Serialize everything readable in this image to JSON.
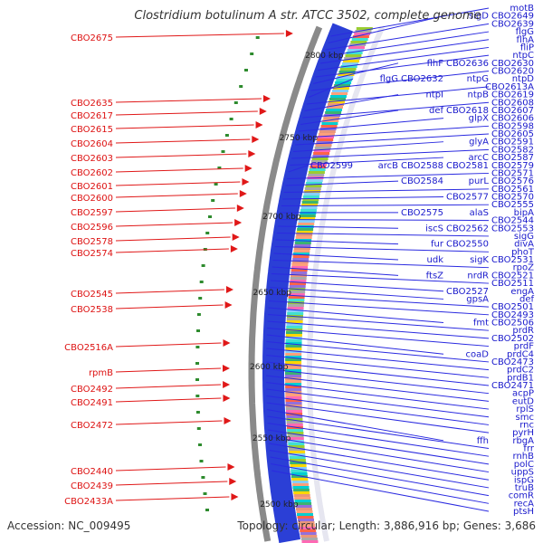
{
  "title": "Clostridium botulinum A str. ATCC 3502, complete genome",
  "accession": "Accession: NC_009495",
  "summary": "Topology: circular; Length: 3,886,916 bp; Genes: 3,686",
  "colors": {
    "right_label": "#1a1acc",
    "left_label": "#dd1111",
    "right_line": "#2a2ae0",
    "left_line": "#e01818"
  },
  "kbp_labels": [
    "2800 kbp",
    "2750 kbp",
    "2700 kbp",
    "2650 kbp",
    "2600 kbp",
    "2550 kbp",
    "2500 kbp"
  ],
  "right_labels": [
    [
      "motB"
    ],
    [
      "sigD",
      "CBO2649"
    ],
    [
      "CBO2639"
    ],
    [
      "flgG"
    ],
    [
      "flhA"
    ],
    [
      "fliP"
    ],
    [
      "ntpC"
    ],
    [
      "flhF",
      "CBO2636",
      "CBO2630"
    ],
    [
      "CBO2620"
    ],
    [
      "flgG",
      "CBO2632",
      "ntpG",
      "ntpD"
    ],
    [
      "CBO2613A"
    ],
    [
      "ntpI",
      "ntpB",
      "CBO2619"
    ],
    [
      "CBO2608"
    ],
    [
      "def",
      "CBO2618",
      "CBO2607"
    ],
    [
      "glpX",
      "CBO2606"
    ],
    [
      "CBO2598"
    ],
    [
      "CBO2605"
    ],
    [
      "glyA",
      "CBO2591"
    ],
    [
      "CBO2582"
    ],
    [
      "arcC",
      "CBO2587"
    ],
    [
      "CBO2599",
      "arcB",
      "CBO2588",
      "CBO2581",
      "CBO2579"
    ],
    [
      "CBO2571"
    ],
    [
      "CBO2584",
      "purL",
      "CBO2576"
    ],
    [
      "CBO2561"
    ],
    [
      "CBO2577",
      "CBO2570"
    ],
    [
      "CBO2555"
    ],
    [
      "CBO2575",
      "alaS",
      "bipA"
    ],
    [
      "CBO2544"
    ],
    [
      "iscS",
      "CBO2562",
      "CBO2553"
    ],
    [
      "sigG"
    ],
    [
      "fur",
      "CBO2550",
      "divA"
    ],
    [
      "phoT"
    ],
    [
      "udk",
      "sigK",
      "CBO2531"
    ],
    [
      "rpoZ"
    ],
    [
      "ftsZ",
      "nrdR",
      "CBO2521"
    ],
    [
      "CBO2511"
    ],
    [
      "CBO2527",
      "engA"
    ],
    [
      "gpsA",
      "def"
    ],
    [
      "CBO2501"
    ],
    [
      "CBO2493"
    ],
    [
      "fmt",
      "CBO2506"
    ],
    [
      "prdR"
    ],
    [
      "CBO2502"
    ],
    [
      "prdF"
    ],
    [
      "coaD",
      "prdC4"
    ],
    [
      "CBO2473"
    ],
    [
      "prdC2"
    ],
    [
      "prdB1"
    ],
    [
      "CBO2471"
    ],
    [
      "acpP"
    ],
    [
      "eutD"
    ],
    [
      "rplS"
    ],
    [
      "smc"
    ],
    [
      "rnc"
    ],
    [
      "pyrH"
    ],
    [
      "ffh",
      "rbgA"
    ],
    [
      "frr"
    ],
    [
      "rnhB"
    ],
    [
      "polC"
    ],
    [
      "uppS"
    ],
    [
      "ispG"
    ],
    [
      "truB"
    ],
    [
      "comR"
    ],
    [
      "recA"
    ],
    [
      "ptsH"
    ]
  ],
  "left_labels": [
    "CBO2675",
    "CBO2635",
    "CBO2617",
    "CBO2615",
    "CBO2604",
    "CBO2603",
    "CBO2602",
    "CBO2601",
    "CBO2600",
    "CBO2597",
    "CBO2596",
    "CBO2578",
    "CBO2574",
    "CBO2545",
    "CBO2538",
    "CBO2516A",
    "rpmB",
    "CBO2492",
    "CBO2491",
    "CBO2472",
    "CBO2440",
    "CBO2439",
    "CBO2433A"
  ]
}
